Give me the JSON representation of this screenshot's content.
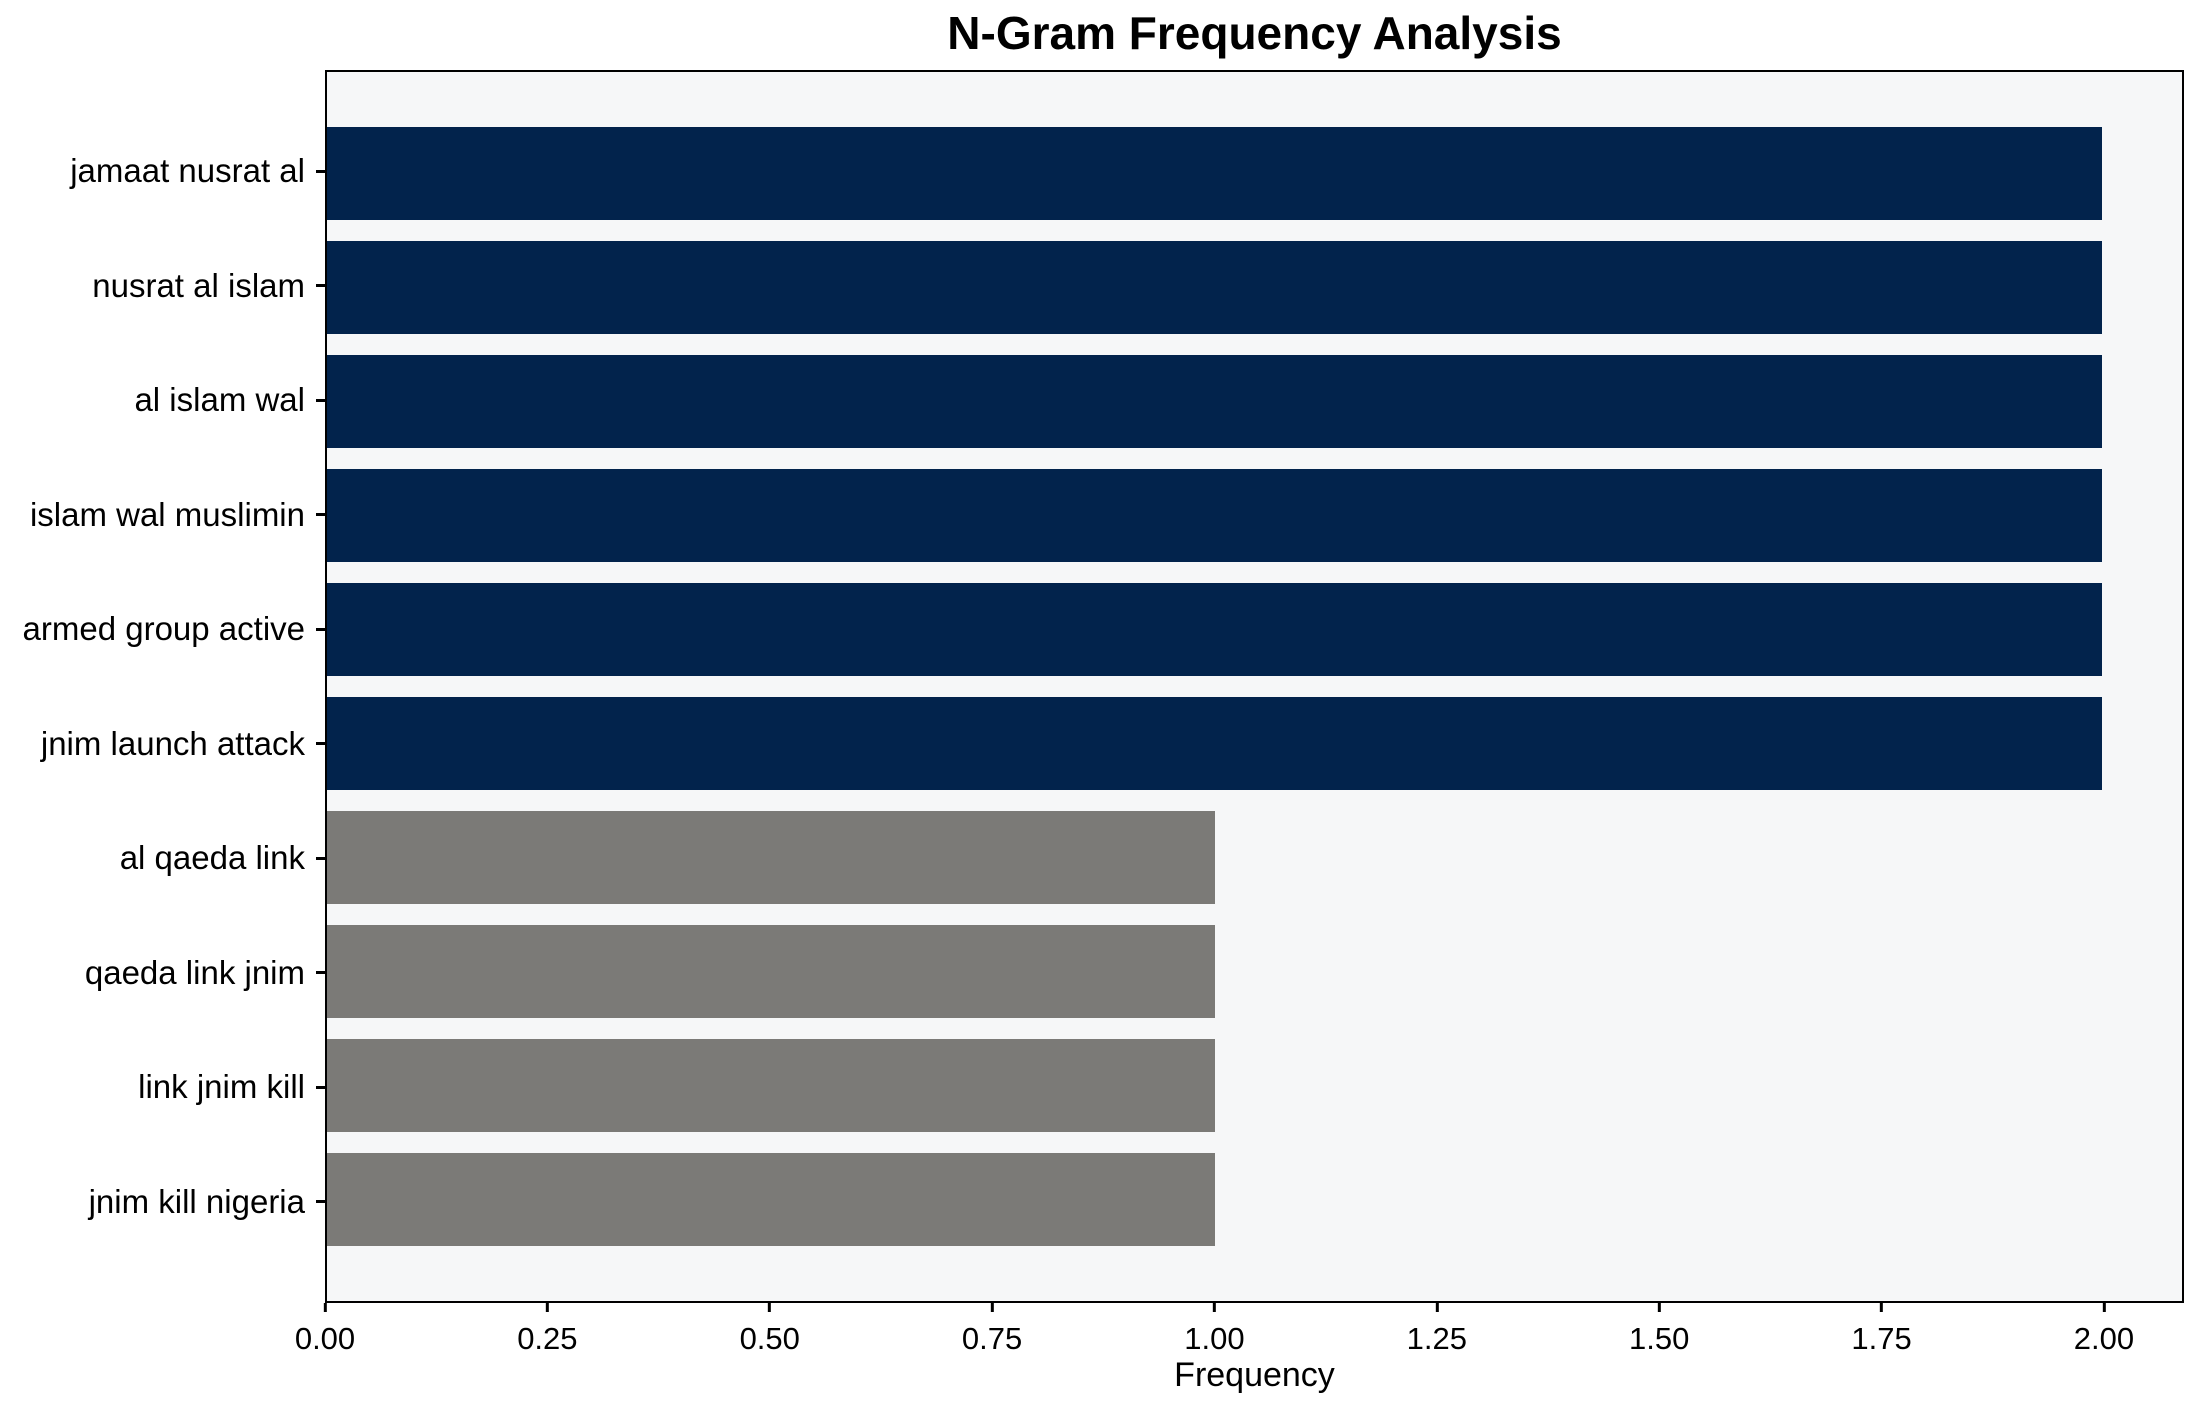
{
  "chart_data": {
    "type": "bar",
    "orientation": "horizontal",
    "title": "N-Gram Frequency Analysis",
    "xlabel": "Frequency",
    "ylabel": "",
    "categories": [
      "jamaat nusrat al",
      "nusrat al islam",
      "al islam wal",
      "islam wal muslimin",
      "armed group active",
      "jnim launch attack",
      "al qaeda link",
      "qaeda link jnim",
      "link jnim kill",
      "jnim kill nigeria"
    ],
    "values": [
      2,
      2,
      2,
      2,
      2,
      2,
      1,
      1,
      1,
      1
    ],
    "bar_colors": [
      "#02234c",
      "#02234c",
      "#02234c",
      "#02234c",
      "#02234c",
      "#02234c",
      "#7b7a77",
      "#7b7a77",
      "#7b7a77",
      "#7b7a77"
    ],
    "xlim": [
      0,
      2.09
    ],
    "xticks": [
      {
        "value": 0.0,
        "label": "0.00"
      },
      {
        "value": 0.25,
        "label": "0.25"
      },
      {
        "value": 0.5,
        "label": "0.50"
      },
      {
        "value": 0.75,
        "label": "0.75"
      },
      {
        "value": 1.0,
        "label": "1.00"
      },
      {
        "value": 1.25,
        "label": "1.25"
      },
      {
        "value": 1.5,
        "label": "1.50"
      },
      {
        "value": 1.75,
        "label": "1.75"
      },
      {
        "value": 2.0,
        "label": "2.00"
      }
    ],
    "grid": false,
    "legend": null,
    "colors": {
      "high_freq_bar": "#02234c",
      "low_freq_bar": "#7b7a77",
      "plot_background": "#f6f7f8",
      "figure_background": "#ffffff",
      "axis": "#000000",
      "text": "#000000"
    }
  }
}
